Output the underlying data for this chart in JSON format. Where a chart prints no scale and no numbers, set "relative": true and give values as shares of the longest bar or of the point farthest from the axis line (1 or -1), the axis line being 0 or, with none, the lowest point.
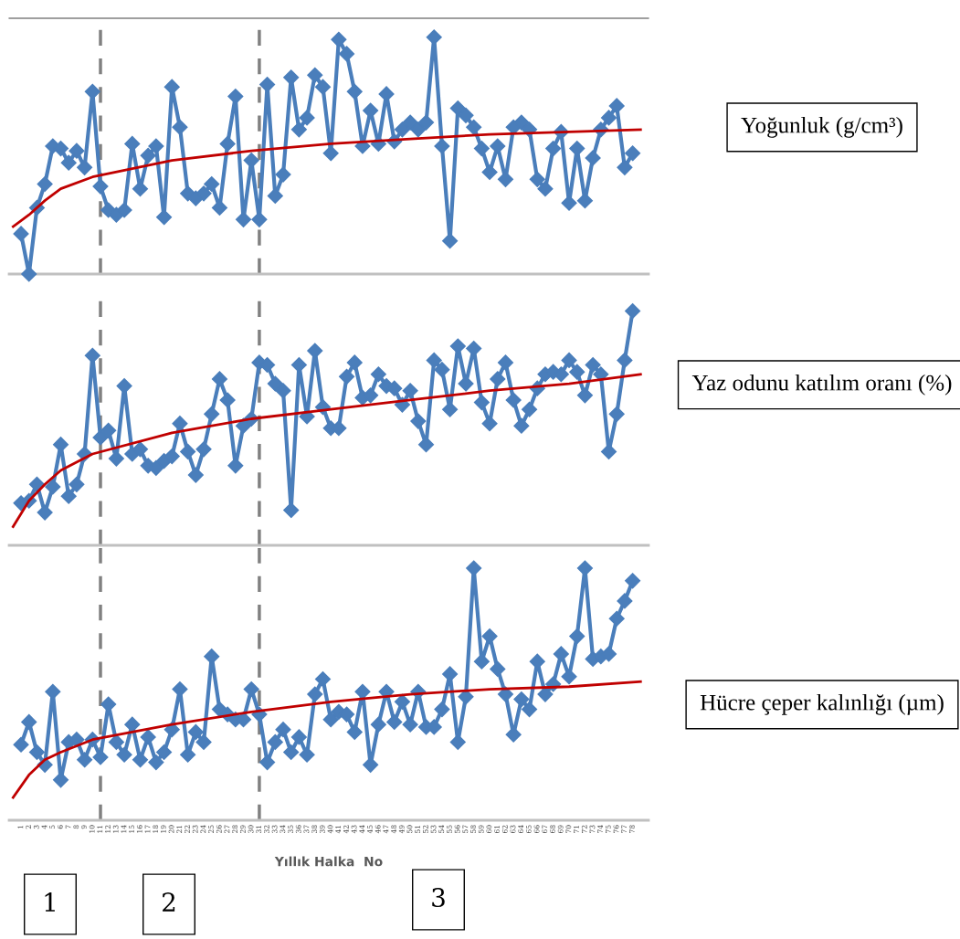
{
  "chart_data": [
    {
      "type": "line",
      "ylabel": "Yoğunluk (g/cm³)",
      "relative": true,
      "xlim": [
        -0.5,
        80
      ],
      "tick_labels": false,
      "grid": false,
      "legend": false,
      "ref_lines": [
        {
          "axis": "x",
          "value": 11,
          "color": "#808080",
          "line_style": "dashed"
        },
        {
          "axis": "x",
          "value": 31,
          "color": "#808080",
          "line_style": "dashed"
        }
      ],
      "series": [
        {
          "type": "line",
          "color": "#4a7ebb",
          "marker": "diamond",
          "line_style": "solid",
          "x": [
            1,
            2,
            3,
            4,
            5,
            6,
            7,
            8,
            9,
            10,
            11,
            12,
            13,
            14,
            15,
            16,
            17,
            18,
            19,
            20,
            21,
            22,
            23,
            24,
            25,
            26,
            27,
            28,
            29,
            30,
            31,
            32,
            33,
            34,
            35,
            36,
            37,
            38,
            39,
            40,
            41,
            42,
            43,
            44,
            45,
            46,
            47,
            48,
            49,
            50,
            51,
            52,
            53,
            54,
            55,
            56,
            57,
            58,
            59,
            60,
            61,
            62,
            63,
            64,
            65,
            66,
            67,
            68,
            69,
            70,
            71,
            72,
            73,
            74,
            75,
            76,
            77,
            78
          ],
          "values": [
            0.17,
            0,
            0.28,
            0.38,
            0.54,
            0.53,
            0.47,
            0.52,
            0.45,
            0.77,
            0.37,
            0.27,
            0.25,
            0.27,
            0.55,
            0.36,
            0.5,
            0.54,
            0.24,
            0.79,
            0.62,
            0.34,
            0.32,
            0.34,
            0.38,
            0.28,
            0.55,
            0.75,
            0.23,
            0.48,
            0.23,
            0.8,
            0.33,
            0.42,
            0.83,
            0.61,
            0.66,
            0.84,
            0.79,
            0.51,
            0.99,
            0.93,
            0.77,
            0.54,
            0.69,
            0.55,
            0.76,
            0.56,
            0.61,
            0.64,
            0.61,
            0.64,
            1,
            0.54,
            0.14,
            0.7,
            0.67,
            0.62,
            0.53,
            0.43,
            0.54,
            0.4,
            0.62,
            0.64,
            0.61,
            0.4,
            0.36,
            0.53,
            0.6,
            0.3,
            0.53,
            0.31,
            0.49,
            0.61,
            0.66,
            0.71,
            0.45,
            0.51
          ]
        },
        {
          "type": "line",
          "color": "#c00000",
          "marker": "none",
          "line_style": "solid",
          "x": [
            0,
            2,
            4,
            6,
            10,
            20,
            30,
            40,
            50,
            60,
            70,
            79
          ],
          "values": [
            0.2,
            0.25,
            0.31,
            0.36,
            0.41,
            0.48,
            0.52,
            0.55,
            0.57,
            0.59,
            0.6,
            0.61
          ]
        }
      ]
    },
    {
      "type": "line",
      "ylabel": "Yaz odunu katılım oranı (%)",
      "relative": true,
      "xlim": [
        -0.5,
        80
      ],
      "tick_labels": false,
      "grid": false,
      "legend": false,
      "ref_lines": [
        {
          "axis": "x",
          "value": 11,
          "color": "#808080",
          "line_style": "dashed"
        },
        {
          "axis": "x",
          "value": 31,
          "color": "#808080",
          "line_style": "dashed"
        }
      ],
      "series": [
        {
          "type": "line",
          "color": "#4a7ebb",
          "marker": "diamond",
          "line_style": "solid",
          "x": [
            1,
            2,
            3,
            4,
            5,
            6,
            7,
            8,
            9,
            10,
            11,
            12,
            13,
            14,
            15,
            16,
            17,
            18,
            19,
            20,
            21,
            22,
            23,
            24,
            25,
            26,
            27,
            28,
            29,
            30,
            31,
            32,
            33,
            34,
            35,
            36,
            37,
            38,
            39,
            40,
            41,
            42,
            43,
            44,
            45,
            46,
            47,
            48,
            49,
            50,
            51,
            52,
            53,
            54,
            55,
            56,
            57,
            58,
            59,
            60,
            61,
            62,
            63,
            64,
            65,
            66,
            67,
            68,
            69,
            70,
            71,
            72,
            73,
            74,
            75,
            76,
            77,
            78
          ],
          "values": [
            0.18,
            0.19,
            0.26,
            0.14,
            0.25,
            0.43,
            0.21,
            0.26,
            0.39,
            0.81,
            0.46,
            0.49,
            0.37,
            0.68,
            0.39,
            0.41,
            0.34,
            0.33,
            0.36,
            0.38,
            0.52,
            0.4,
            0.3,
            0.41,
            0.56,
            0.71,
            0.62,
            0.34,
            0.51,
            0.54,
            0.78,
            0.77,
            0.69,
            0.66,
            0.15,
            0.77,
            0.55,
            0.83,
            0.59,
            0.5,
            0.5,
            0.72,
            0.78,
            0.63,
            0.64,
            0.73,
            0.68,
            0.67,
            0.6,
            0.66,
            0.53,
            0.43,
            0.79,
            0.75,
            0.58,
            0.85,
            0.69,
            0.84,
            0.61,
            0.52,
            0.71,
            0.78,
            0.62,
            0.51,
            0.58,
            0.67,
            0.73,
            0.74,
            0.73,
            0.79,
            0.74,
            0.64,
            0.77,
            0.73,
            0.4,
            0.56,
            0.79,
            1
          ]
        },
        {
          "type": "line",
          "color": "#c00000",
          "marker": "none",
          "line_style": "solid",
          "x": [
            0,
            2,
            4,
            6,
            10,
            20,
            30,
            40,
            50,
            60,
            70,
            79
          ],
          "values": [
            0.08,
            0.19,
            0.26,
            0.32,
            0.39,
            0.48,
            0.54,
            0.58,
            0.62,
            0.66,
            0.69,
            0.73
          ]
        }
      ]
    },
    {
      "type": "line",
      "ylabel": "Hücre çeper kalınlığı (µm)",
      "xlabel": "Yıllık Halka  No",
      "relative": true,
      "xlim": [
        -0.5,
        80
      ],
      "tick_labels": "x",
      "grid": false,
      "legend": false,
      "xticks": [
        1,
        2,
        3,
        4,
        5,
        6,
        7,
        8,
        9,
        10,
        11,
        12,
        13,
        14,
        15,
        16,
        17,
        18,
        19,
        20,
        21,
        22,
        23,
        24,
        25,
        26,
        27,
        28,
        29,
        30,
        31,
        32,
        33,
        34,
        35,
        36,
        37,
        38,
        39,
        40,
        41,
        42,
        43,
        44,
        45,
        46,
        47,
        48,
        49,
        50,
        51,
        52,
        53,
        54,
        55,
        56,
        57,
        58,
        59,
        60,
        61,
        62,
        63,
        64,
        65,
        66,
        67,
        68,
        69,
        70,
        71,
        72,
        73,
        74,
        75,
        76,
        77,
        78
      ],
      "annotations": [
        "1",
        "2",
        "3"
      ],
      "ref_lines": [
        {
          "axis": "x",
          "value": 11,
          "color": "#808080",
          "line_style": "dashed"
        },
        {
          "axis": "x",
          "value": 31,
          "color": "#808080",
          "line_style": "dashed"
        }
      ],
      "series": [
        {
          "type": "line",
          "color": "#4a7ebb",
          "marker": "diamond",
          "line_style": "solid",
          "x": [
            1,
            2,
            3,
            4,
            5,
            6,
            7,
            8,
            9,
            10,
            11,
            12,
            13,
            14,
            15,
            16,
            17,
            18,
            19,
            20,
            21,
            22,
            23,
            24,
            25,
            26,
            27,
            28,
            29,
            30,
            31,
            32,
            33,
            34,
            35,
            36,
            37,
            38,
            39,
            40,
            41,
            42,
            43,
            44,
            45,
            46,
            47,
            48,
            49,
            50,
            51,
            52,
            53,
            54,
            55,
            56,
            57,
            58,
            59,
            60,
            61,
            62,
            63,
            64,
            65,
            66,
            67,
            68,
            69,
            70,
            71,
            72,
            73,
            74,
            75,
            76,
            77,
            78
          ],
          "values": [
            0.3,
            0.39,
            0.27,
            0.22,
            0.51,
            0.16,
            0.31,
            0.32,
            0.24,
            0.32,
            0.25,
            0.46,
            0.31,
            0.26,
            0.38,
            0.24,
            0.33,
            0.23,
            0.27,
            0.36,
            0.52,
            0.26,
            0.35,
            0.31,
            0.65,
            0.44,
            0.42,
            0.4,
            0.4,
            0.52,
            0.42,
            0.23,
            0.31,
            0.36,
            0.27,
            0.33,
            0.26,
            0.5,
            0.56,
            0.4,
            0.43,
            0.42,
            0.35,
            0.51,
            0.22,
            0.38,
            0.51,
            0.39,
            0.47,
            0.38,
            0.51,
            0.37,
            0.37,
            0.44,
            0.58,
            0.31,
            0.49,
            1,
            0.63,
            0.73,
            0.6,
            0.5,
            0.34,
            0.48,
            0.44,
            0.63,
            0.5,
            0.54,
            0.66,
            0.57,
            0.73,
            1,
            0.64,
            0.65,
            0.66,
            0.8,
            0.87,
            0.95
          ]
        },
        {
          "type": "line",
          "color": "#c00000",
          "marker": "none",
          "line_style": "solid",
          "x": [
            0,
            2,
            4,
            6,
            10,
            20,
            30,
            40,
            50,
            60,
            70,
            79
          ],
          "values": [
            0.09,
            0.18,
            0.24,
            0.27,
            0.32,
            0.38,
            0.43,
            0.47,
            0.5,
            0.52,
            0.53,
            0.55
          ]
        }
      ]
    }
  ]
}
